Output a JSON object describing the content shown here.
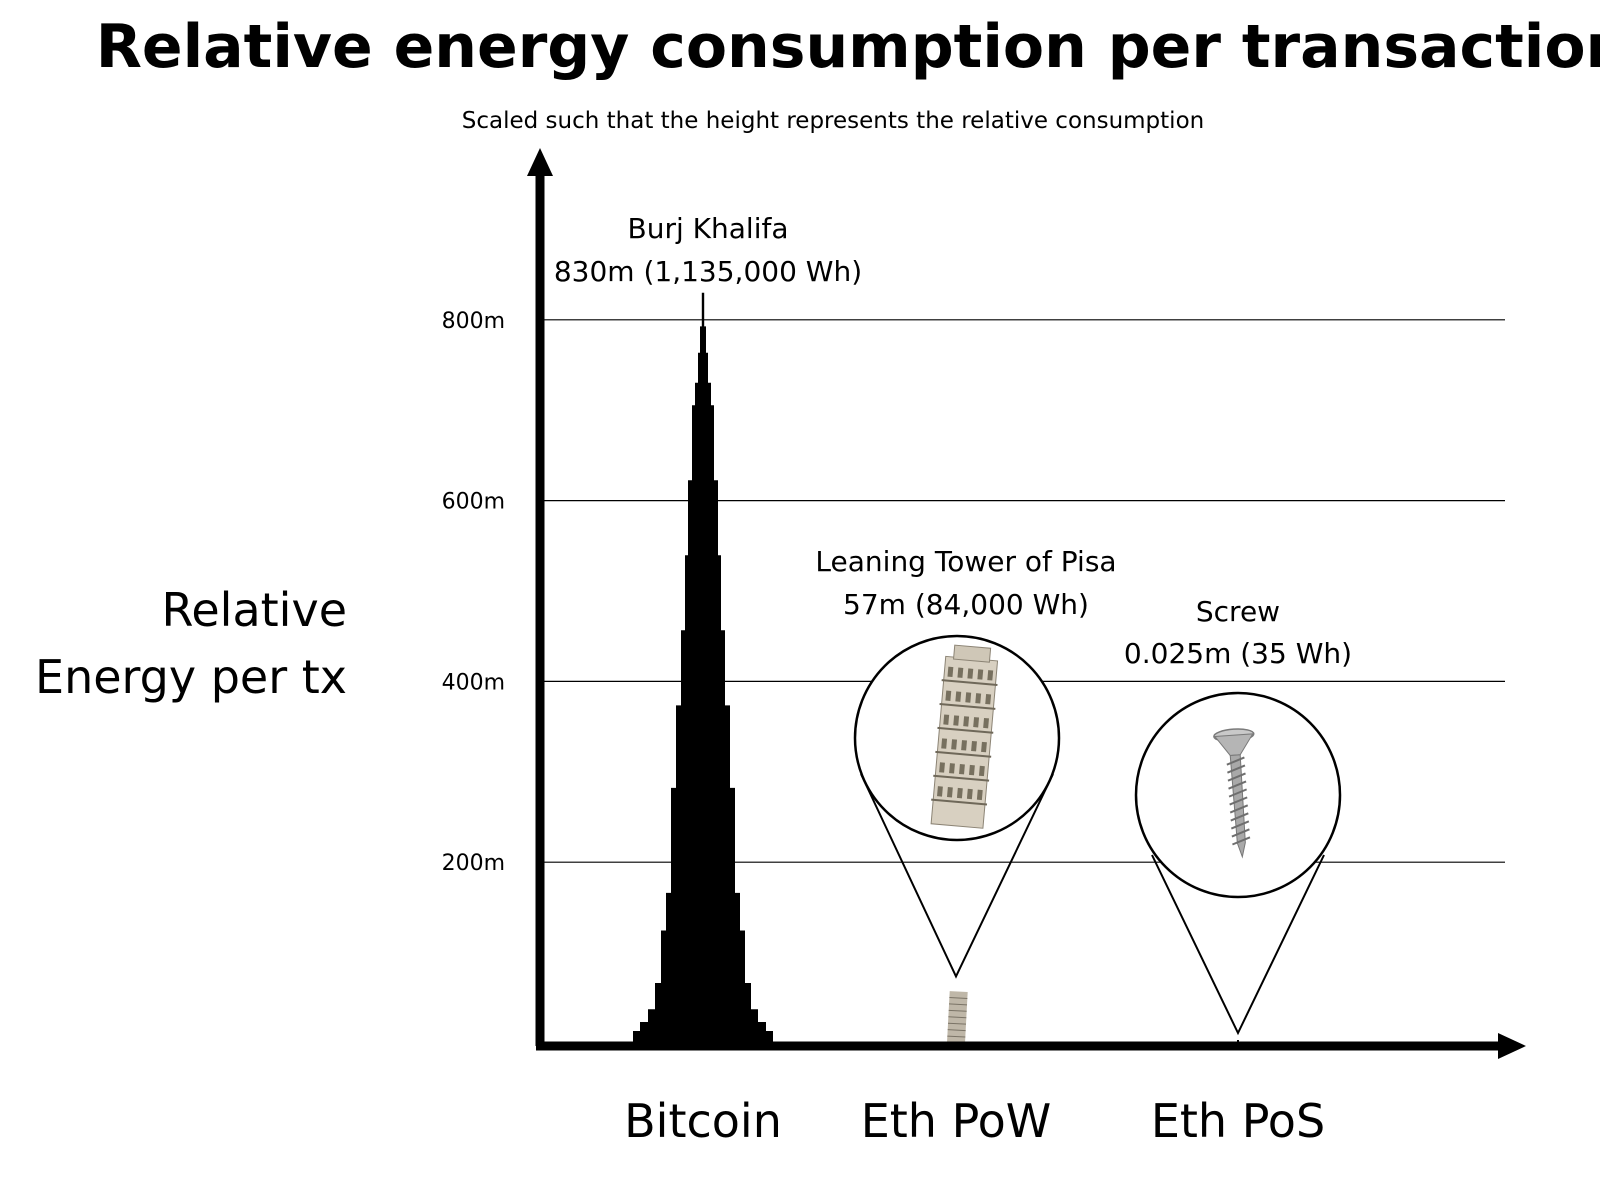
{
  "chart_data": {
    "type": "bar",
    "title": "Relative energy consumption per transaction",
    "subtitle": "Scaled such that the height represents the relative consumption",
    "ylabel_lines": [
      "Relative",
      "Energy per tx"
    ],
    "categories": [
      "Bitcoin",
      "Eth PoW",
      "Eth PoS"
    ],
    "values": [
      830,
      57,
      0.025
    ],
    "y_unit": "m",
    "yticks": [
      200,
      400,
      600,
      800
    ],
    "ytick_labels": [
      "200m",
      "400m",
      "600m",
      "800m"
    ],
    "ylim": [
      0,
      1000
    ],
    "grid": true,
    "annotations": [
      {
        "category": "Bitcoin",
        "name": "Burj Khalifa",
        "detail": "830m (1,135,000 Wh)"
      },
      {
        "category": "Eth PoW",
        "name": "Leaning Tower of Pisa",
        "detail": "57m (84,000 Wh)"
      },
      {
        "category": "Eth PoS",
        "name": "Screw",
        "detail": "0.025m (35 Wh)"
      }
    ],
    "mark_icons": [
      "burj-khalifa-icon",
      "pisa-tower-icon",
      "screw-icon"
    ],
    "mark_color": "#000000"
  }
}
